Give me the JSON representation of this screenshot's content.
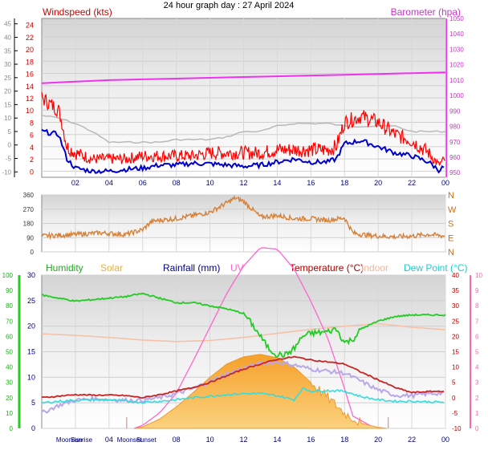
{
  "page_title": "24 hour graph day : 27 April 2024",
  "colors": {
    "wind_avg": "#0000cc",
    "wind_gust": "#ff0000",
    "barometer": "#ee33ee",
    "grey_trace": "#b8b8b8",
    "direction": "#d4823a",
    "humidity": "#22cc22",
    "solar": "#f8b54a",
    "rainfall": "#000080",
    "uv": "#ff66cc",
    "temperature": "#cc2222",
    "indoor": "#f5c2a8",
    "dew_point": "#33dddd",
    "apparent": "#b8a8e8"
  },
  "chart_data": [
    {
      "type": "line",
      "panel": "wind-barometer",
      "title": "Windspeed (kts)",
      "right_title": "Barometer (hpa)",
      "ylim": [
        -1,
        25
      ],
      "y2lim": [
        947,
        1050
      ],
      "y_ticks_outer": [
        45,
        40,
        35,
        30,
        25,
        20,
        15,
        10,
        5,
        0,
        -5,
        -10
      ],
      "y_ticks_inner": [
        24,
        22,
        20,
        18,
        16,
        14,
        12,
        10,
        8,
        6,
        4,
        2,
        0
      ],
      "y2_ticks": [
        950,
        960,
        970,
        980,
        990,
        1000,
        1010,
        1020,
        1030,
        1040,
        1050
      ],
      "x_ticks": [
        "02",
        "04",
        "06",
        "08",
        "10",
        "12",
        "14",
        "16",
        "18",
        "20",
        "22",
        "00"
      ],
      "grid": true,
      "series": [
        {
          "name": "Barometer (hpa)",
          "axis": "right",
          "x": [
            0,
            2,
            4,
            6,
            8,
            10,
            12,
            14,
            16,
            18,
            20,
            22,
            24
          ],
          "values": [
            1008,
            1009,
            1010,
            1010.5,
            1011,
            1011.5,
            1012,
            1012.5,
            1013,
            1013.5,
            1014,
            1014.5,
            1015
          ]
        },
        {
          "axis": "outer",
          "x": [
            0,
            1,
            2,
            3,
            4,
            5,
            6,
            7,
            8,
            9,
            10,
            11,
            12,
            13,
            14,
            15,
            16,
            17,
            18,
            19,
            20,
            21,
            22,
            23,
            24
          ],
          "values": [
            11,
            10,
            8,
            5,
            1,
            1,
            1,
            1,
            2,
            2,
            2,
            3,
            5,
            5,
            7,
            8,
            8,
            8,
            7,
            7,
            7,
            7,
            5,
            5,
            5
          ]
        },
        {
          "axis": "left",
          "x": [
            0,
            1,
            1.2,
            1.5,
            2,
            3,
            4,
            5,
            6,
            7,
            8,
            9,
            10,
            11,
            12,
            13,
            14,
            15,
            16,
            17,
            17.5,
            18,
            19,
            20,
            21,
            22,
            23,
            23.6,
            24
          ],
          "values": [
            12,
            10,
            8,
            4,
            3,
            2,
            2,
            2,
            2.5,
            2.5,
            2.5,
            2.5,
            3,
            3,
            3,
            3,
            3.5,
            3.5,
            3.5,
            3.5,
            4,
            8,
            9,
            8,
            6,
            5,
            3,
            1,
            2
          ]
        },
        {
          "axis": "left",
          "x": [
            0,
            1,
            1.5,
            2,
            3,
            4,
            5,
            6,
            7,
            8,
            9,
            10,
            11,
            12,
            13,
            14,
            15,
            16,
            17,
            17.5,
            18,
            19,
            20,
            21,
            22,
            23,
            23.6,
            24
          ],
          "values": [
            6.5,
            6,
            2,
            0.5,
            0,
            0,
            0.3,
            0.5,
            1,
            1,
            1.3,
            1.2,
            1,
            0.8,
            1,
            1.5,
            2,
            1.5,
            1.5,
            2,
            4.5,
            5,
            4,
            3,
            2.5,
            1.5,
            0.2,
            0.8
          ]
        }
      ]
    },
    {
      "type": "line",
      "panel": "wind-direction",
      "ylim": [
        0,
        360
      ],
      "y_ticks": [
        360,
        270,
        180,
        90,
        0
      ],
      "compass_labels": [
        "N",
        "W",
        "S",
        "E",
        "N"
      ],
      "grid": true,
      "series": [
        {
          "x": [
            0,
            2,
            3.5,
            5,
            6,
            6.5,
            7,
            8,
            9,
            10,
            10.5,
            11,
            11.5,
            12,
            12.5,
            13,
            14,
            15,
            16,
            17,
            18,
            18.5,
            19,
            20,
            21,
            22,
            23,
            24
          ],
          "values": [
            100,
            110,
            120,
            110,
            140,
            190,
            200,
            210,
            230,
            250,
            280,
            310,
            340,
            320,
            270,
            220,
            230,
            210,
            210,
            200,
            215,
            120,
            110,
            100,
            95,
            100,
            110,
            100
          ]
        }
      ]
    },
    {
      "type": "area",
      "panel": "temperature-humidity-solar",
      "legend": [
        "Humidity",
        "Solar",
        "Rainfall (mm)",
        "UV",
        "Temperature (°C)",
        "Indoor",
        "Dew Point (°C)"
      ],
      "ylim_temp": [
        0,
        30
      ],
      "y_ticks_humidity": [
        100,
        90,
        80,
        70,
        60,
        50,
        40,
        30,
        20,
        10,
        0
      ],
      "y_ticks_temp_left": [
        30,
        25,
        20,
        15,
        10,
        5,
        0
      ],
      "y_ticks_right": [
        40,
        35,
        30,
        25,
        20,
        15,
        10,
        5,
        0,
        -5,
        -10
      ],
      "y_ticks_uv": [
        10,
        9,
        8,
        7,
        6,
        5,
        4,
        3,
        2,
        1,
        0
      ],
      "x_ticks": [
        "02",
        "04",
        "06",
        "08",
        "10",
        "12",
        "14",
        "16",
        "18",
        "20",
        "22",
        "00"
      ],
      "x_annotations": [
        "Moonrise",
        "Sunrise",
        "Moonset",
        "Sunset"
      ],
      "grid": true,
      "series": [
        {
          "name": "Humidity",
          "x": [
            0,
            1,
            2,
            3,
            4,
            5,
            6,
            7,
            8,
            9,
            10,
            11,
            12,
            12.5,
            13,
            13.5,
            14,
            14.5,
            15,
            15.5,
            16,
            17,
            17.5,
            18,
            18.5,
            19,
            20,
            21,
            22,
            23,
            24
          ],
          "values": [
            87,
            85,
            83,
            84,
            85,
            86,
            88,
            85,
            82,
            82,
            80,
            78,
            75,
            68,
            60,
            52,
            48,
            48,
            52,
            60,
            62,
            63,
            65,
            56,
            58,
            65,
            70,
            73,
            74,
            74,
            74
          ]
        },
        {
          "name": "Solar",
          "x": [
            5.5,
            6,
            7,
            8,
            9,
            10,
            11,
            12,
            13,
            14,
            15,
            16,
            17,
            18,
            19,
            20,
            20.5
          ],
          "values": [
            0,
            0.3,
            1.8,
            4.2,
            7,
            10,
            12.6,
            14,
            14.5,
            13.8,
            12,
            9,
            6,
            3,
            1,
            0.2,
            0
          ]
        },
        {
          "name": "Temperature (°C)",
          "x": [
            0,
            1,
            2,
            3,
            4,
            5,
            6,
            7,
            8,
            9,
            10,
            11,
            12,
            13,
            14,
            15,
            16,
            17,
            18,
            19,
            20,
            21,
            22,
            23,
            24
          ],
          "values": [
            6,
            6.3,
            6.6,
            6.5,
            6.5,
            6.4,
            6,
            6.6,
            7.3,
            8,
            9,
            10.3,
            11.6,
            12.6,
            13.5,
            14,
            13.4,
            13,
            12.6,
            11,
            9.5,
            8,
            7,
            7.2,
            7.3
          ]
        },
        {
          "name": "Dew Point (°C)",
          "x": [
            0,
            1,
            2,
            3,
            4,
            5,
            6,
            7,
            8,
            9,
            10,
            11,
            12,
            13,
            14,
            15,
            15.5,
            16,
            17,
            18,
            19,
            20,
            21,
            22,
            23,
            24
          ],
          "values": [
            5,
            5.3,
            5.5,
            5.6,
            5.6,
            5.3,
            5.1,
            5.3,
            5.6,
            6,
            6.3,
            6.6,
            6.8,
            6.8,
            6.4,
            5.6,
            7.8,
            7.3,
            7.4,
            7.3,
            6.2,
            5.6,
            5.3,
            5.3,
            5.2,
            5.1
          ]
        },
        {
          "name": "Indoor",
          "x": [
            0,
            2,
            4,
            6,
            8,
            10,
            12,
            14,
            16,
            18,
            20,
            22,
            24
          ],
          "values": [
            18.5,
            18.2,
            17.8,
            17.3,
            17,
            17.2,
            17.8,
            18.6,
            19.4,
            20,
            20.5,
            19.8,
            19.3
          ]
        },
        {
          "name": "UV",
          "x": [
            5.5,
            6,
            7,
            8,
            9,
            10,
            11,
            12,
            13,
            14,
            15,
            16,
            17,
            18,
            18.5,
            19,
            19.5
          ],
          "values": [
            0,
            0.2,
            1,
            2.3,
            4.4,
            6.6,
            8.8,
            10.6,
            11.8,
            11.7,
            10.4,
            8.3,
            5.9,
            2.6,
            0.8,
            0.5,
            0.2
          ]
        },
        {
          "x": [
            0,
            1,
            2,
            3,
            4,
            5,
            6,
            7,
            8,
            9,
            10,
            11,
            12,
            13,
            14,
            15,
            16,
            17,
            18,
            19,
            20,
            21,
            22,
            23,
            24
          ],
          "values": [
            3,
            4.5,
            5.5,
            5.8,
            5.6,
            5.5,
            5.5,
            6,
            6.8,
            7.8,
            9.2,
            10.6,
            11.8,
            12.7,
            13,
            12.4,
            11.6,
            11.2,
            10.8,
            9.2,
            7.5,
            6.5,
            6.4,
            6.8,
            6.9
          ]
        }
      ]
    }
  ]
}
